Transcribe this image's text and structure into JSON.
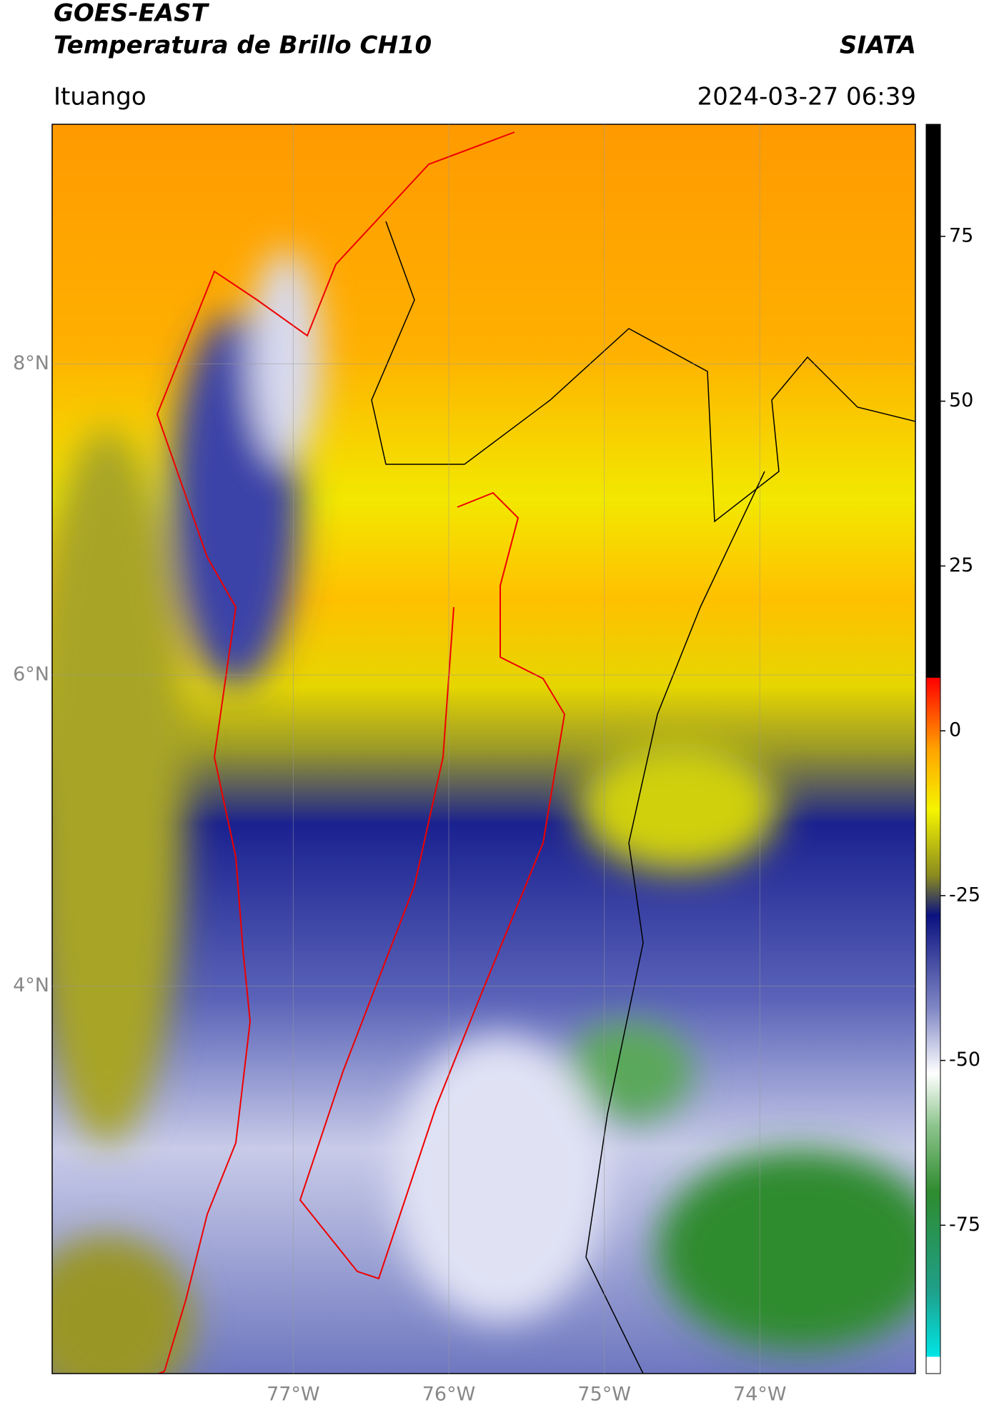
{
  "header": {
    "title_line1": "GOES-EAST",
    "title_line2": "Temperatura de Brillo CH10",
    "org": "SIATA",
    "location": "Ituango",
    "datetime": "2024-03-27 06:39"
  },
  "map": {
    "xlim": [
      -78.55,
      -73.0
    ],
    "ylim": [
      1.51,
      9.54
    ],
    "xticks": [
      {
        "value": -77,
        "label": "77°W"
      },
      {
        "value": -76,
        "label": "76°W"
      },
      {
        "value": -75,
        "label": "75°W"
      },
      {
        "value": -74,
        "label": "74°W"
      }
    ],
    "yticks": [
      {
        "value": 4,
        "label": "4°N"
      },
      {
        "value": 6,
        "label": "6°N"
      },
      {
        "value": 8,
        "label": "8°N"
      }
    ]
  },
  "colorbar": {
    "lim": [
      -97.5,
      92
    ],
    "ticks": [
      -75,
      -50,
      -25,
      0,
      25,
      50,
      75
    ],
    "stops": [
      {
        "value": -97.5,
        "color": "#ffffff"
      },
      {
        "value": -95,
        "color": "#ffffff"
      },
      {
        "value": -94.9,
        "color": "#00e5e5"
      },
      {
        "value": -85,
        "color": "#1fa08a"
      },
      {
        "value": -70,
        "color": "#2e8b2e"
      },
      {
        "value": -60,
        "color": "#8cc48c"
      },
      {
        "value": -52,
        "color": "#ffffff"
      },
      {
        "value": -42,
        "color": "#7f86c4"
      },
      {
        "value": -28,
        "color": "#0b1280"
      },
      {
        "value": -22,
        "color": "#8a8a20"
      },
      {
        "value": -12,
        "color": "#f5f500"
      },
      {
        "value": -3,
        "color": "#ffa500"
      },
      {
        "value": 8,
        "color": "#ff0000"
      },
      {
        "value": 8.1,
        "color": "#000000"
      },
      {
        "value": 92,
        "color": "#000000"
      }
    ]
  }
}
